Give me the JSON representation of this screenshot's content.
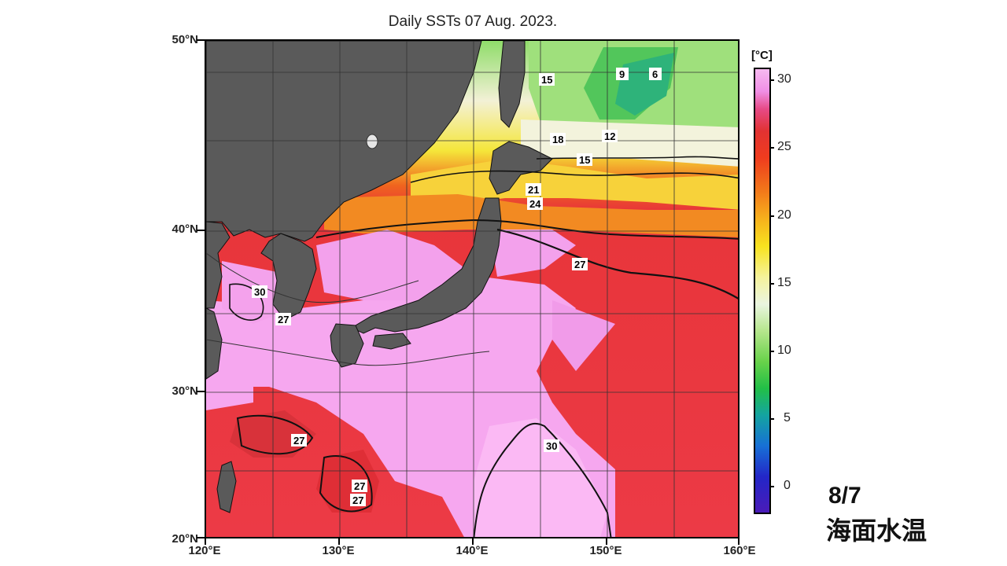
{
  "title": "Daily SSTs 07 Aug. 2023.",
  "axes": {
    "y_labels": [
      "50°N",
      "40°N",
      "30°N",
      "20°N"
    ],
    "x_labels": [
      "120°E",
      "130°E",
      "140°E",
      "150°E",
      "160°E"
    ]
  },
  "colorbar": {
    "unit": "[°C]",
    "ticks": [
      "30",
      "25",
      "20",
      "15",
      "10",
      "5",
      "0"
    ]
  },
  "contour_labels": [
    "15",
    "9",
    "6",
    "18",
    "12",
    "15",
    "21",
    "24",
    "27",
    "30",
    "27",
    "27",
    "27",
    "27",
    "30"
  ],
  "colors": {
    "land": "#555555",
    "warm_pink": "#f5a5ef",
    "red": "#e8353a",
    "orange": "#f0641e",
    "yellow": "#f5e63a",
    "pale": "#f2f2d2",
    "green": "#7fd85a"
  },
  "date_label": "8/7",
  "caption": "海面水温"
}
